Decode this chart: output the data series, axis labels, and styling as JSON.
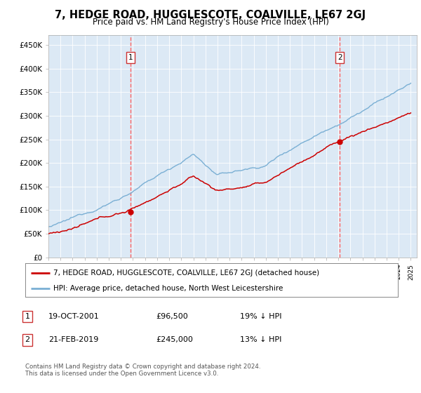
{
  "title": "7, HEDGE ROAD, HUGGLESCOTE, COALVILLE, LE67 2GJ",
  "subtitle": "Price paid vs. HM Land Registry's House Price Index (HPI)",
  "background_color": "#dce9f5",
  "fig_bg_color": "#ffffff",
  "ylim": [
    0,
    470000
  ],
  "yticks": [
    0,
    50000,
    100000,
    150000,
    200000,
    250000,
    300000,
    350000,
    400000,
    450000
  ],
  "ytick_labels": [
    "£0",
    "£50K",
    "£100K",
    "£150K",
    "£200K",
    "£250K",
    "£300K",
    "£350K",
    "£400K",
    "£450K"
  ],
  "sale1_year": 2001.8,
  "sale1_price": 96500,
  "sale2_year": 2019.12,
  "sale2_price": 245000,
  "legend_line1": "7, HEDGE ROAD, HUGGLESCOTE, COALVILLE, LE67 2GJ (detached house)",
  "legend_line2": "HPI: Average price, detached house, North West Leicestershire",
  "annotation1_date": "19-OCT-2001",
  "annotation1_price": "£96,500",
  "annotation1_hpi": "19% ↓ HPI",
  "annotation2_date": "21-FEB-2019",
  "annotation2_price": "£245,000",
  "annotation2_hpi": "13% ↓ HPI",
  "red_line_color": "#cc0000",
  "blue_line_color": "#7aafd4",
  "vline_color": "#ff6666",
  "footer": "Contains HM Land Registry data © Crown copyright and database right 2024.\nThis data is licensed under the Open Government Licence v3.0."
}
